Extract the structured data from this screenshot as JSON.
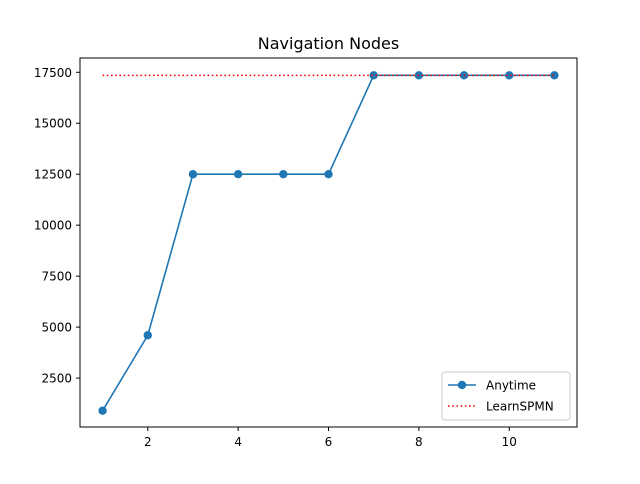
{
  "chart_data": {
    "type": "line",
    "title": "Navigation Nodes",
    "xlabel": "",
    "ylabel": "",
    "xlim": [
      0.5,
      11.5
    ],
    "ylim": [
      100,
      18200
    ],
    "xticks": [
      2,
      4,
      6,
      8,
      10
    ],
    "yticks": [
      2500,
      5000,
      7500,
      10000,
      12500,
      15000,
      17500
    ],
    "grid": false,
    "legend_position": "lower-right",
    "series": [
      {
        "name": "Anytime",
        "style": "solid-marker",
        "color": "#1f77b4",
        "x": [
          1,
          2,
          3,
          4,
          5,
          6,
          7,
          8,
          9,
          10,
          11
        ],
        "y": [
          900,
          4600,
          12500,
          12500,
          12500,
          12500,
          17350,
          17350,
          17350,
          17350,
          17350
        ]
      },
      {
        "name": "LearnSPMN",
        "style": "dotted",
        "color": "#ff0000",
        "x": [
          1,
          11
        ],
        "y": [
          17350,
          17350
        ]
      }
    ]
  }
}
